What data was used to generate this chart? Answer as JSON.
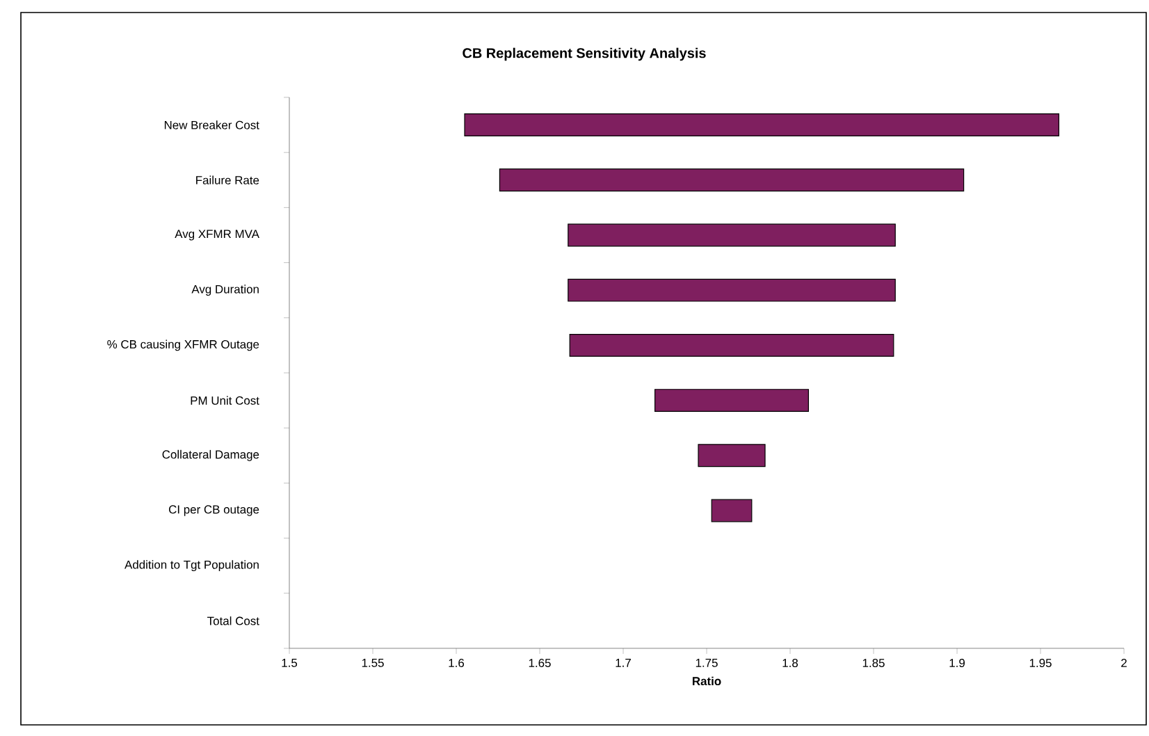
{
  "chart_data": {
    "type": "bar",
    "orientation": "horizontal",
    "title": "CB Replacement Sensitivity Analysis",
    "xlabel": "Ratio",
    "categories": [
      "New Breaker Cost",
      "Failure Rate",
      "Avg XFMR MVA",
      "Avg Duration",
      "% CB causing XFMR Outage",
      "PM Unit Cost",
      "Collateral Damage",
      "CI per CB outage",
      "Addition to Tgt Population",
      "Total Cost"
    ],
    "base": [
      1.605,
      1.626,
      1.667,
      1.667,
      1.668,
      1.719,
      1.745,
      1.753,
      null,
      null
    ],
    "values": [
      0.356,
      0.278,
      0.196,
      0.196,
      0.194,
      0.092,
      0.04,
      0.024,
      null,
      null
    ],
    "color": "#7f1f5f",
    "xlim": [
      1.5,
      2
    ],
    "xticks": [
      1.5,
      1.55,
      1.6,
      1.65,
      1.7,
      1.75,
      1.8,
      1.85,
      1.9,
      1.95,
      2
    ],
    "grid": false
  }
}
